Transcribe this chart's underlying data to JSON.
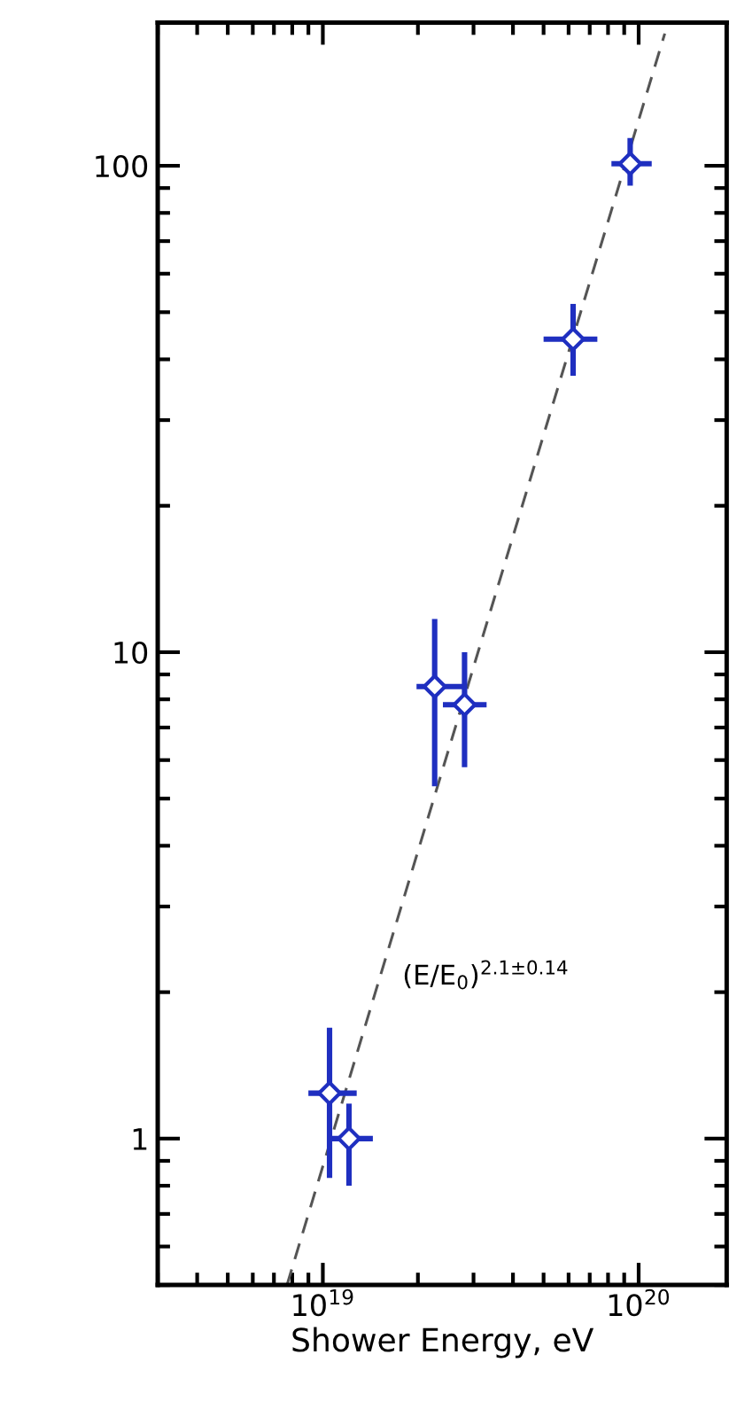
{
  "chart_data": {
    "type": "scatter",
    "xlabel": "Shower Energy, eV",
    "log": "xy",
    "xlim": [
      3e+18,
      1.9e+20
    ],
    "ylim": [
      0.5,
      197
    ],
    "xticks": [
      {
        "value": 1e+19,
        "label": "10$^{19}$"
      },
      {
        "value": 1e+20,
        "label": "10$^{20}$"
      }
    ],
    "yticks": [
      1,
      10,
      100
    ],
    "marker": "diamond",
    "grid": false,
    "legend": false,
    "series": [
      {
        "color": "#1f2fc0",
        "x": [
          1.05e+19,
          1.21e+19,
          2.26e+19,
          2.81e+19,
          6.2e+19,
          9.4e+19
        ],
        "values": [
          1.24,
          1.0,
          8.5,
          7.8,
          44,
          101
        ],
        "errors": [
          [
            0.83,
            1.69
          ],
          [
            0.8,
            1.18
          ],
          [
            5.3,
            11.7
          ],
          [
            5.8,
            10.0
          ],
          [
            37,
            52
          ],
          [
            91,
            114
          ]
        ],
        "xerrors": [
          [
            9e+18,
            1.28e+19
          ],
          [
            1.05e+19,
            1.44e+19
          ],
          [
            1.98e+19,
            2.8e+19
          ],
          [
            2.4e+19,
            3.3e+19
          ],
          [
            5e+19,
            7.4e+19
          ],
          [
            8.2e+19,
            1.1e+20
          ]
        ]
      },
      {
        "type": "line",
        "color": "#555555",
        "line_style": "dashed",
        "marker": "none",
        "x": [
          7.7e+18,
          1.21e+20
        ],
        "values": [
          0.5,
          187
        ]
      }
    ],
    "annotations": [
      "(E/E$_{0}$)$^{2.1±0.14}$"
    ]
  }
}
